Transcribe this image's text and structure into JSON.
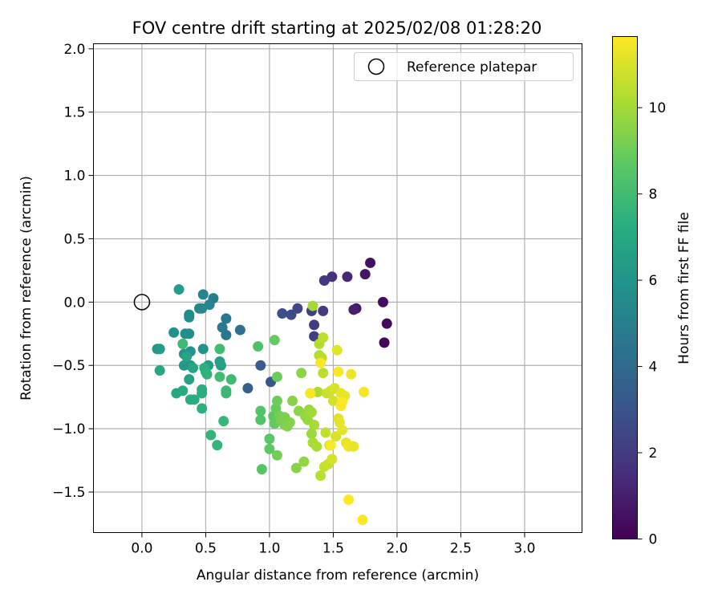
{
  "chart_data": {
    "type": "scatter",
    "title": "FOV centre drift starting at 2025/02/08 01:28:20",
    "xlabel": "Angular distance from reference (arcmin)",
    "ylabel": "Rotation from reference (arcmin)",
    "xlim": [
      -0.38,
      3.45
    ],
    "ylim": [
      -1.82,
      2.04
    ],
    "xticks": [
      0.0,
      0.5,
      1.0,
      1.5,
      2.0,
      2.5,
      3.0
    ],
    "xtick_labels": [
      "0.0",
      "0.5",
      "1.0",
      "1.5",
      "2.0",
      "2.5",
      "3.0"
    ],
    "yticks": [
      2.0,
      1.5,
      1.0,
      0.5,
      0.0,
      -0.5,
      -1.0,
      -1.5
    ],
    "ytick_labels": [
      "2.0",
      "1.5",
      "1.0",
      "0.5",
      "0.0",
      "−0.5",
      "−1.0",
      "−1.5"
    ],
    "grid": true,
    "legend": {
      "placement": "top-right",
      "entries": [
        "Reference platepar"
      ]
    },
    "reference_point": {
      "x": 0.0,
      "y": 0.0,
      "marker": "open-circle"
    },
    "colorbar": {
      "label": "Hours from first FF file",
      "colormap": "viridis",
      "range": [
        0,
        11.65
      ],
      "ticks": [
        0,
        2,
        4,
        6,
        8,
        10
      ],
      "tick_labels": [
        "0",
        "2",
        "4",
        "6",
        "8",
        "10"
      ]
    },
    "points": [
      {
        "x": 1.9,
        "y": -0.32,
        "hours": 0.2
      },
      {
        "x": 1.92,
        "y": -0.17,
        "hours": 0.3
      },
      {
        "x": 1.89,
        "y": 0.0,
        "hours": 0.4
      },
      {
        "x": 1.79,
        "y": 0.31,
        "hours": 0.5
      },
      {
        "x": 1.75,
        "y": 0.22,
        "hours": 0.7
      },
      {
        "x": 1.68,
        "y": -0.05,
        "hours": 0.8
      },
      {
        "x": 1.66,
        "y": -0.06,
        "hours": 1.0
      },
      {
        "x": 1.61,
        "y": 0.2,
        "hours": 1.3
      },
      {
        "x": 1.49,
        "y": 0.2,
        "hours": 1.6
      },
      {
        "x": 1.43,
        "y": 0.17,
        "hours": 1.8
      },
      {
        "x": 1.42,
        "y": -0.07,
        "hours": 2.0
      },
      {
        "x": 1.35,
        "y": -0.18,
        "hours": 2.1
      },
      {
        "x": 1.35,
        "y": -0.27,
        "hours": 2.2
      },
      {
        "x": 1.33,
        "y": -0.07,
        "hours": 2.3
      },
      {
        "x": 1.22,
        "y": -0.05,
        "hours": 2.4
      },
      {
        "x": 1.17,
        "y": -0.1,
        "hours": 2.6
      },
      {
        "x": 1.1,
        "y": -0.09,
        "hours": 2.8
      },
      {
        "x": 1.01,
        "y": -0.63,
        "hours": 3.2
      },
      {
        "x": 0.93,
        "y": -0.5,
        "hours": 3.4
      },
      {
        "x": 0.83,
        "y": -0.68,
        "hours": 3.6
      },
      {
        "x": 0.77,
        "y": -0.22,
        "hours": 4.2
      },
      {
        "x": 0.66,
        "y": -0.26,
        "hours": 4.5
      },
      {
        "x": 0.66,
        "y": -0.13,
        "hours": 4.6
      },
      {
        "x": 0.63,
        "y": -0.2,
        "hours": 4.8
      },
      {
        "x": 0.56,
        "y": 0.03,
        "hours": 5.0
      },
      {
        "x": 0.53,
        "y": -0.02,
        "hours": 5.1
      },
      {
        "x": 0.48,
        "y": 0.06,
        "hours": 5.2
      },
      {
        "x": 0.47,
        "y": -0.05,
        "hours": 5.3
      },
      {
        "x": 0.45,
        "y": -0.05,
        "hours": 5.4
      },
      {
        "x": 0.37,
        "y": -0.1,
        "hours": 5.5
      },
      {
        "x": 0.37,
        "y": -0.12,
        "hours": 5.6
      },
      {
        "x": 0.37,
        "y": -0.25,
        "hours": 5.7
      },
      {
        "x": 0.34,
        "y": -0.25,
        "hours": 5.8
      },
      {
        "x": 0.25,
        "y": -0.24,
        "hours": 5.9
      },
      {
        "x": 0.38,
        "y": -0.39,
        "hours": 6.0
      },
      {
        "x": 0.48,
        "y": -0.37,
        "hours": 6.0
      },
      {
        "x": 0.33,
        "y": -0.41,
        "hours": 6.1
      },
      {
        "x": 0.33,
        "y": -0.5,
        "hours": 6.2
      },
      {
        "x": 0.38,
        "y": -0.5,
        "hours": 6.2
      },
      {
        "x": 0.12,
        "y": -0.37,
        "hours": 6.3
      },
      {
        "x": 0.14,
        "y": -0.37,
        "hours": 6.4
      },
      {
        "x": 0.29,
        "y": 0.1,
        "hours": 6.4
      },
      {
        "x": 0.52,
        "y": -0.5,
        "hours": 6.5
      },
      {
        "x": 0.61,
        "y": -0.47,
        "hours": 6.5
      },
      {
        "x": 0.62,
        "y": -0.5,
        "hours": 6.6
      },
      {
        "x": 0.37,
        "y": -0.61,
        "hours": 6.7
      },
      {
        "x": 0.4,
        "y": -0.52,
        "hours": 6.8
      },
      {
        "x": 0.35,
        "y": -0.43,
        "hours": 6.8
      },
      {
        "x": 0.14,
        "y": -0.54,
        "hours": 7.0
      },
      {
        "x": 0.27,
        "y": -0.72,
        "hours": 7.0
      },
      {
        "x": 0.32,
        "y": -0.7,
        "hours": 7.1
      },
      {
        "x": 0.38,
        "y": -0.77,
        "hours": 7.2
      },
      {
        "x": 0.41,
        "y": -0.77,
        "hours": 7.2
      },
      {
        "x": 0.47,
        "y": -0.69,
        "hours": 7.3
      },
      {
        "x": 0.47,
        "y": -0.72,
        "hours": 7.3
      },
      {
        "x": 0.47,
        "y": -0.84,
        "hours": 7.4
      },
      {
        "x": 0.49,
        "y": -0.52,
        "hours": 7.4
      },
      {
        "x": 0.5,
        "y": -0.55,
        "hours": 7.5
      },
      {
        "x": 0.51,
        "y": -0.57,
        "hours": 7.5
      },
      {
        "x": 0.54,
        "y": -1.05,
        "hours": 7.6
      },
      {
        "x": 0.59,
        "y": -1.13,
        "hours": 7.6
      },
      {
        "x": 0.64,
        "y": -0.94,
        "hours": 7.7
      },
      {
        "x": 0.66,
        "y": -0.7,
        "hours": 7.8
      },
      {
        "x": 0.66,
        "y": -0.72,
        "hours": 7.8
      },
      {
        "x": 0.7,
        "y": -0.61,
        "hours": 7.9
      },
      {
        "x": 0.61,
        "y": -0.37,
        "hours": 8.0
      },
      {
        "x": 0.61,
        "y": -0.59,
        "hours": 8.0
      },
      {
        "x": 0.32,
        "y": -0.33,
        "hours": 7.9
      },
      {
        "x": 0.91,
        "y": -0.35,
        "hours": 8.3
      },
      {
        "x": 0.93,
        "y": -0.86,
        "hours": 8.4
      },
      {
        "x": 0.93,
        "y": -0.93,
        "hours": 8.4
      },
      {
        "x": 0.94,
        "y": -1.32,
        "hours": 8.5
      },
      {
        "x": 1.0,
        "y": -1.08,
        "hours": 8.6
      },
      {
        "x": 1.0,
        "y": -1.16,
        "hours": 8.7
      },
      {
        "x": 1.03,
        "y": -0.9,
        "hours": 8.7
      },
      {
        "x": 1.04,
        "y": -0.3,
        "hours": 8.8
      },
      {
        "x": 1.04,
        "y": -0.96,
        "hours": 8.8
      },
      {
        "x": 1.05,
        "y": -0.84,
        "hours": 8.9
      },
      {
        "x": 1.06,
        "y": -0.59,
        "hours": 9.0
      },
      {
        "x": 1.06,
        "y": -0.78,
        "hours": 9.0
      },
      {
        "x": 1.06,
        "y": -1.21,
        "hours": 9.1
      },
      {
        "x": 1.08,
        "y": -0.9,
        "hours": 9.1
      },
      {
        "x": 1.09,
        "y": -0.94,
        "hours": 9.2
      },
      {
        "x": 1.1,
        "y": -0.92,
        "hours": 9.2
      },
      {
        "x": 1.12,
        "y": -0.91,
        "hours": 9.3
      },
      {
        "x": 1.12,
        "y": -0.97,
        "hours": 9.3
      },
      {
        "x": 1.14,
        "y": -0.98,
        "hours": 9.4
      },
      {
        "x": 1.16,
        "y": -0.95,
        "hours": 9.4
      },
      {
        "x": 1.18,
        "y": -0.78,
        "hours": 9.5
      },
      {
        "x": 1.21,
        "y": -1.31,
        "hours": 9.5
      },
      {
        "x": 1.23,
        "y": -0.86,
        "hours": 9.6
      },
      {
        "x": 1.25,
        "y": -0.56,
        "hours": 9.6
      },
      {
        "x": 1.27,
        "y": -1.26,
        "hours": 9.7
      },
      {
        "x": 1.28,
        "y": -0.9,
        "hours": 9.7
      },
      {
        "x": 1.3,
        "y": -0.93,
        "hours": 9.8
      },
      {
        "x": 1.31,
        "y": -0.85,
        "hours": 9.8
      },
      {
        "x": 1.32,
        "y": -0.72,
        "hours": 9.9
      },
      {
        "x": 1.33,
        "y": -1.04,
        "hours": 9.9
      },
      {
        "x": 1.33,
        "y": -0.87,
        "hours": 10.0
      },
      {
        "x": 1.34,
        "y": -0.03,
        "hours": 10.0
      },
      {
        "x": 1.34,
        "y": -1.11,
        "hours": 10.1
      },
      {
        "x": 1.35,
        "y": -0.97,
        "hours": 10.1
      },
      {
        "x": 1.37,
        "y": -1.14,
        "hours": 10.2
      },
      {
        "x": 1.38,
        "y": -0.71,
        "hours": 10.2
      },
      {
        "x": 1.39,
        "y": -0.33,
        "hours": 10.3
      },
      {
        "x": 1.39,
        "y": -0.42,
        "hours": 10.3
      },
      {
        "x": 1.4,
        "y": -1.37,
        "hours": 10.4
      },
      {
        "x": 1.41,
        "y": -0.44,
        "hours": 10.4
      },
      {
        "x": 1.42,
        "y": -0.28,
        "hours": 10.5
      },
      {
        "x": 1.42,
        "y": -0.56,
        "hours": 10.5
      },
      {
        "x": 1.43,
        "y": -1.3,
        "hours": 10.6
      },
      {
        "x": 1.44,
        "y": -1.03,
        "hours": 10.6
      },
      {
        "x": 1.45,
        "y": -0.72,
        "hours": 10.7
      },
      {
        "x": 1.46,
        "y": -1.28,
        "hours": 10.7
      },
      {
        "x": 1.47,
        "y": -1.13,
        "hours": 10.8
      },
      {
        "x": 1.48,
        "y": -0.7,
        "hours": 10.8
      },
      {
        "x": 1.49,
        "y": -1.24,
        "hours": 10.9
      },
      {
        "x": 1.5,
        "y": -0.78,
        "hours": 10.9
      },
      {
        "x": 1.51,
        "y": -0.68,
        "hours": 11.0
      },
      {
        "x": 1.52,
        "y": -1.06,
        "hours": 11.0
      },
      {
        "x": 1.53,
        "y": -0.38,
        "hours": 11.1
      },
      {
        "x": 1.54,
        "y": -0.92,
        "hours": 11.1
      },
      {
        "x": 1.55,
        "y": -0.95,
        "hours": 11.2
      },
      {
        "x": 1.56,
        "y": -0.72,
        "hours": 11.2
      },
      {
        "x": 1.57,
        "y": -1.01,
        "hours": 11.2
      },
      {
        "x": 1.59,
        "y": -0.74,
        "hours": 11.3
      },
      {
        "x": 1.6,
        "y": -1.11,
        "hours": 11.3
      },
      {
        "x": 1.62,
        "y": -1.14,
        "hours": 11.4
      },
      {
        "x": 1.64,
        "y": -0.57,
        "hours": 11.4
      },
      {
        "x": 1.65,
        "y": -1.14,
        "hours": 11.4
      },
      {
        "x": 1.66,
        "y": -1.14,
        "hours": 11.3
      },
      {
        "x": 1.74,
        "y": -0.71,
        "hours": 11.5
      },
      {
        "x": 1.32,
        "y": -0.72,
        "hours": 11.5
      },
      {
        "x": 1.4,
        "y": -0.48,
        "hours": 11.6
      },
      {
        "x": 1.48,
        "y": -1.13,
        "hours": 11.6
      },
      {
        "x": 1.54,
        "y": -0.55,
        "hours": 11.6
      },
      {
        "x": 1.56,
        "y": -0.82,
        "hours": 11.6
      },
      {
        "x": 1.57,
        "y": -0.79,
        "hours": 11.6
      },
      {
        "x": 1.62,
        "y": -1.56,
        "hours": 11.6
      },
      {
        "x": 1.73,
        "y": -1.72,
        "hours": 11.65
      }
    ]
  }
}
